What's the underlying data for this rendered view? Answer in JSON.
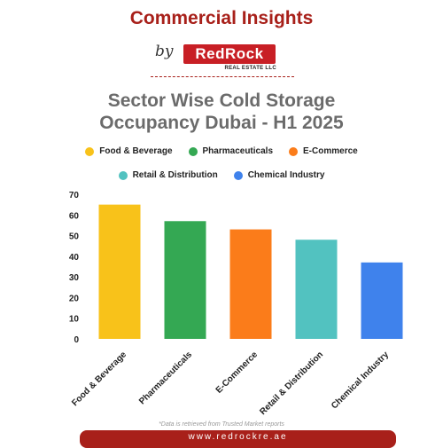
{
  "header": {
    "title": "Commercial Insights",
    "by": "by",
    "logo_text": "RedRock",
    "logo_subtext": "REAL ESTATE LLC"
  },
  "chart_data": {
    "type": "bar",
    "title_line1": "Sector Wise Cold Storage",
    "title_line2": "Occupancy Dubai - H1 2025",
    "categories": [
      "Food & Beverage",
      "Pharmaceuticals",
      "E-Commerce",
      "Retail & Distribution",
      "Chemical Industry"
    ],
    "values": [
      65,
      57,
      53,
      48,
      37
    ],
    "colors": [
      "#f8c21a",
      "#34a853",
      "#fb7c1a",
      "#52c2c0",
      "#3f82ec"
    ],
    "ylim": [
      0,
      70
    ],
    "yticks": [
      0,
      10,
      20,
      30,
      40,
      50,
      60,
      70
    ],
    "legend_placement": "top",
    "grid": false
  },
  "legend": {
    "row1": [
      {
        "label": "Food & Beverage",
        "color": "#f8c21a"
      },
      {
        "label": "Pharmaceuticals",
        "color": "#34a853"
      },
      {
        "label": "E-Commerce",
        "color": "#fb7c1a"
      }
    ],
    "row2": [
      {
        "label": "Retail & Distribution",
        "color": "#52c2c0"
      },
      {
        "label": "Chemical Industry",
        "color": "#3f82ec"
      }
    ]
  },
  "footer": {
    "note": "*Data is retrieved from Trusted Market reports",
    "website": "www.redrockre.ae"
  }
}
